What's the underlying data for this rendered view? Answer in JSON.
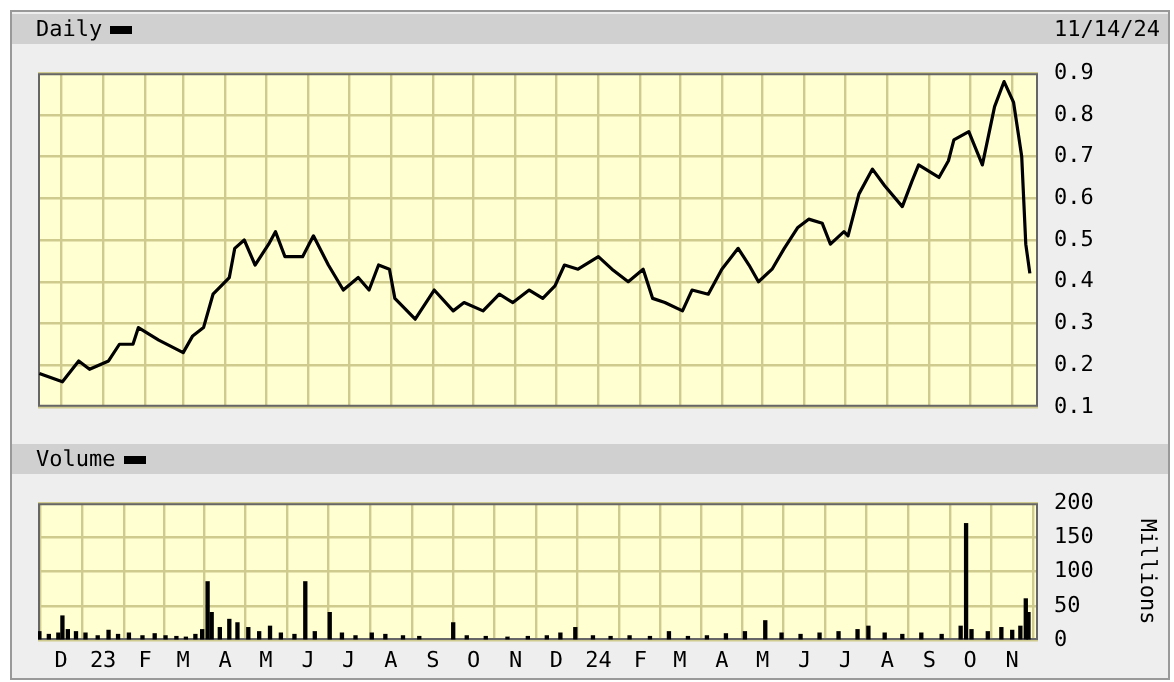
{
  "chart_data": [
    {
      "type": "line",
      "x": [
        "2022-11-15",
        "2022-12-02",
        "2022-12-14",
        "2022-12-22",
        "2023-01-05",
        "2023-01-13",
        "2023-01-23",
        "2023-01-27",
        "2023-02-11",
        "2023-03-01",
        "2023-03-08",
        "2023-03-16",
        "2023-03-23",
        "2023-04-04",
        "2023-04-08",
        "2023-04-15",
        "2023-04-23",
        "2023-05-03",
        "2023-05-08",
        "2023-05-15",
        "2023-05-28",
        "2023-06-05",
        "2023-06-16",
        "2023-06-27",
        "2023-07-08",
        "2023-07-16",
        "2023-07-23",
        "2023-07-31",
        "2023-08-04",
        "2023-08-19",
        "2023-09-02",
        "2023-09-16",
        "2023-09-24",
        "2023-10-08",
        "2023-10-20",
        "2023-10-30",
        "2023-11-11",
        "2023-11-21",
        "2023-11-30",
        "2023-12-07",
        "2023-12-17",
        "2024-01-01",
        "2024-01-11",
        "2024-01-23",
        "2024-02-03",
        "2024-02-10",
        "2024-02-19",
        "2024-03-03",
        "2024-03-10",
        "2024-03-22",
        "2024-04-01",
        "2024-04-13",
        "2024-04-21",
        "2024-04-28",
        "2024-05-08",
        "2024-05-17",
        "2024-05-27",
        "2024-06-04",
        "2024-06-14",
        "2024-06-20",
        "2024-06-30",
        "2024-07-03",
        "2024-07-11",
        "2024-07-21",
        "2024-07-30",
        "2024-08-12",
        "2024-08-19",
        "2024-08-24",
        "2024-09-08",
        "2024-09-15",
        "2024-09-19",
        "2024-09-30",
        "2024-10-10",
        "2024-10-19",
        "2024-10-26",
        "2024-11-02",
        "2024-11-08",
        "2024-11-11",
        "2024-11-14"
      ],
      "series": [
        {
          "name": "Daily",
          "color": "#000000",
          "values": [
            0.18,
            0.16,
            0.21,
            0.19,
            0.21,
            0.25,
            0.25,
            0.29,
            0.26,
            0.23,
            0.27,
            0.29,
            0.37,
            0.41,
            0.48,
            0.5,
            0.44,
            0.49,
            0.52,
            0.46,
            0.46,
            0.51,
            0.44,
            0.38,
            0.41,
            0.38,
            0.44,
            0.43,
            0.36,
            0.31,
            0.38,
            0.33,
            0.35,
            0.33,
            0.37,
            0.35,
            0.38,
            0.36,
            0.39,
            0.44,
            0.43,
            0.46,
            0.43,
            0.4,
            0.43,
            0.36,
            0.35,
            0.33,
            0.38,
            0.37,
            0.43,
            0.48,
            0.44,
            0.4,
            0.43,
            0.48,
            0.53,
            0.55,
            0.54,
            0.49,
            0.52,
            0.51,
            0.61,
            0.67,
            0.63,
            0.58,
            0.64,
            0.68,
            0.65,
            0.69,
            0.74,
            0.76,
            0.68,
            0.82,
            0.88,
            0.83,
            0.7,
            0.49,
            0.42
          ]
        }
      ],
      "xlim": [
        "2022-11-14",
        "2024-11-20"
      ],
      "xticks": [
        {
          "value": "2022-12-01",
          "label": null
        },
        {
          "value": "2023-01-01",
          "label": null
        },
        {
          "value": "2023-02-01",
          "label": null
        },
        {
          "value": "2023-03-01",
          "label": null
        },
        {
          "value": "2023-04-01",
          "label": null
        },
        {
          "value": "2023-05-01",
          "label": null
        },
        {
          "value": "2023-06-01",
          "label": null
        },
        {
          "value": "2023-07-01",
          "label": null
        },
        {
          "value": "2023-08-01",
          "label": null
        },
        {
          "value": "2023-09-01",
          "label": null
        },
        {
          "value": "2023-10-01",
          "label": null
        },
        {
          "value": "2023-11-01",
          "label": null
        },
        {
          "value": "2023-12-01",
          "label": null
        },
        {
          "value": "2024-01-01",
          "label": null
        },
        {
          "value": "2024-02-01",
          "label": null
        },
        {
          "value": "2024-03-01",
          "label": null
        },
        {
          "value": "2024-04-01",
          "label": null
        },
        {
          "value": "2024-05-01",
          "label": null
        },
        {
          "value": "2024-06-01",
          "label": null
        },
        {
          "value": "2024-07-01",
          "label": null
        },
        {
          "value": "2024-08-01",
          "label": null
        },
        {
          "value": "2024-09-01",
          "label": null
        },
        {
          "value": "2024-10-01",
          "label": null
        },
        {
          "value": "2024-11-01",
          "label": null
        }
      ],
      "ylim": [
        0.1,
        0.9
      ],
      "yticks": [
        0.1,
        0.2,
        0.3,
        0.4,
        0.5,
        0.6,
        0.7,
        0.8,
        0.9
      ],
      "grid": true,
      "legend": "top left",
      "tick_labels": "y",
      "annotations": [
        "11/14/24"
      ]
    },
    {
      "type": "bar",
      "x": [
        "2022-11-15",
        "2022-11-22",
        "2022-11-29",
        "2022-12-02",
        "2022-12-06",
        "2022-12-12",
        "2022-12-19",
        "2022-12-28",
        "2023-01-05",
        "2023-01-12",
        "2023-01-20",
        "2023-01-30",
        "2023-02-08",
        "2023-02-16",
        "2023-02-24",
        "2023-03-03",
        "2023-03-10",
        "2023-03-15",
        "2023-03-19",
        "2023-03-22",
        "2023-03-28",
        "2023-04-04",
        "2023-04-10",
        "2023-04-18",
        "2023-04-26",
        "2023-05-04",
        "2023-05-12",
        "2023-05-22",
        "2023-05-30",
        "2023-06-06",
        "2023-06-17",
        "2023-06-26",
        "2023-07-06",
        "2023-07-18",
        "2023-07-28",
        "2023-08-10",
        "2023-08-22",
        "2023-09-16",
        "2023-09-26",
        "2023-10-10",
        "2023-10-26",
        "2023-11-10",
        "2023-11-24",
        "2023-12-04",
        "2023-12-15",
        "2023-12-28",
        "2024-01-10",
        "2024-01-24",
        "2024-02-08",
        "2024-02-22",
        "2024-03-07",
        "2024-03-21",
        "2024-04-04",
        "2024-04-18",
        "2024-05-03",
        "2024-05-15",
        "2024-05-29",
        "2024-06-12",
        "2024-06-26",
        "2024-07-10",
        "2024-07-18",
        "2024-07-30",
        "2024-08-12",
        "2024-08-26",
        "2024-09-10",
        "2024-09-24",
        "2024-09-28",
        "2024-10-02",
        "2024-10-14",
        "2024-10-24",
        "2024-11-01",
        "2024-11-07",
        "2024-11-11",
        "2024-11-13"
      ],
      "series": [
        {
          "name": "Volume",
          "color": "#000000",
          "values": [
            12,
            8,
            10,
            35,
            15,
            12,
            10,
            6,
            14,
            8,
            10,
            6,
            9,
            6,
            5,
            4,
            8,
            15,
            85,
            40,
            18,
            30,
            25,
            18,
            12,
            20,
            10,
            8,
            85,
            12,
            40,
            10,
            6,
            10,
            8,
            6,
            5,
            25,
            6,
            5,
            4,
            5,
            6,
            10,
            18,
            6,
            5,
            6,
            5,
            12,
            5,
            6,
            9,
            12,
            28,
            10,
            8,
            10,
            12,
            15,
            20,
            10,
            8,
            10,
            8,
            20,
            170,
            15,
            12,
            18,
            14,
            20,
            60,
            40
          ]
        }
      ],
      "xlim": [
        "2022-11-14",
        "2024-11-20"
      ],
      "xticks": [
        {
          "value": "2022-12-01",
          "label": "D"
        },
        {
          "value": "2023-01-01",
          "label": "23"
        },
        {
          "value": "2023-02-01",
          "label": "F"
        },
        {
          "value": "2023-03-01",
          "label": "M"
        },
        {
          "value": "2023-04-01",
          "label": "A"
        },
        {
          "value": "2023-05-01",
          "label": "M"
        },
        {
          "value": "2023-06-01",
          "label": "J"
        },
        {
          "value": "2023-07-01",
          "label": "J"
        },
        {
          "value": "2023-08-01",
          "label": "A"
        },
        {
          "value": "2023-09-01",
          "label": "S"
        },
        {
          "value": "2023-10-01",
          "label": "O"
        },
        {
          "value": "2023-11-01",
          "label": "N"
        },
        {
          "value": "2023-12-01",
          "label": "D"
        },
        {
          "value": "2024-01-01",
          "label": "24"
        },
        {
          "value": "2024-02-01",
          "label": "F"
        },
        {
          "value": "2024-03-01",
          "label": "M"
        },
        {
          "value": "2024-04-01",
          "label": "A"
        },
        {
          "value": "2024-05-01",
          "label": "M"
        },
        {
          "value": "2024-06-01",
          "label": "J"
        },
        {
          "value": "2024-07-01",
          "label": "J"
        },
        {
          "value": "2024-08-01",
          "label": "A"
        },
        {
          "value": "2024-09-01",
          "label": "S"
        },
        {
          "value": "2024-10-01",
          "label": "O"
        },
        {
          "value": "2024-11-01",
          "label": "N"
        }
      ],
      "ylim": [
        0,
        200
      ],
      "yticks": [
        0,
        50,
        100,
        150,
        200
      ],
      "ylabel": "Millions",
      "grid": true,
      "legend": "top left"
    }
  ]
}
